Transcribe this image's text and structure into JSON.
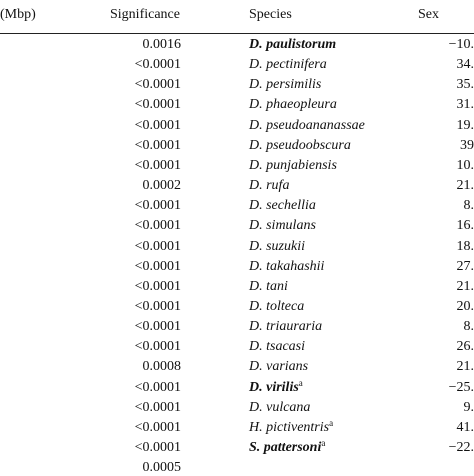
{
  "table": {
    "header": [
      "(Mbp)",
      "Significance",
      "Species",
      "Sex"
    ],
    "rows": [
      {
        "significance": "0.0016",
        "species": "D. paulistorum",
        "bold": true,
        "sex": "−10."
      },
      {
        "significance": "<0.0001",
        "species": "D. pectinifera",
        "sex": "34."
      },
      {
        "significance": "<0.0001",
        "species": "D. persimilis",
        "sex": "35."
      },
      {
        "significance": "<0.0001",
        "species": "D. phaeopleura",
        "sex": "31."
      },
      {
        "significance": "<0.0001",
        "species": "D. pseudoananassae",
        "sex": "19."
      },
      {
        "significance": "<0.0001",
        "species": "D. pseudoobscura",
        "sex": "39"
      },
      {
        "significance": "<0.0001",
        "species": "D. punjabiensis",
        "sex": "10."
      },
      {
        "significance": "0.0002",
        "species": "D. rufa",
        "sex": "21."
      },
      {
        "significance": "<0.0001",
        "species": "D. sechellia",
        "sex": "8."
      },
      {
        "significance": "<0.0001",
        "species": "D. simulans",
        "sex": "16."
      },
      {
        "significance": "<0.0001",
        "species": "D. suzukii",
        "sex": "18."
      },
      {
        "significance": "<0.0001",
        "species": "D. takahashii",
        "sex": "27."
      },
      {
        "significance": "<0.0001",
        "species": "D. tani",
        "sex": "21."
      },
      {
        "significance": "<0.0001",
        "species": "D. tolteca",
        "sex": "20."
      },
      {
        "significance": "<0.0001",
        "species": "D. triauraria",
        "sex": "8."
      },
      {
        "significance": "<0.0001",
        "species": "D. tsacasi",
        "sex": "26."
      },
      {
        "significance": "0.0008",
        "species": "D. varians",
        "sex": "21."
      },
      {
        "significance": "<0.0001",
        "species": "D. virilis",
        "note": "a",
        "bold": true,
        "sex": "−25."
      },
      {
        "significance": "<0.0001",
        "species": "D. vulcana",
        "sex": "9."
      },
      {
        "significance": "<0.0001",
        "species": "H. pictiventris",
        "note": "a",
        "sex": "41."
      },
      {
        "significance": "<0.0001",
        "species": "S. pattersoni",
        "note": "a",
        "bold": true,
        "sex": "−22."
      },
      {
        "significance": "0.0005"
      }
    ]
  }
}
